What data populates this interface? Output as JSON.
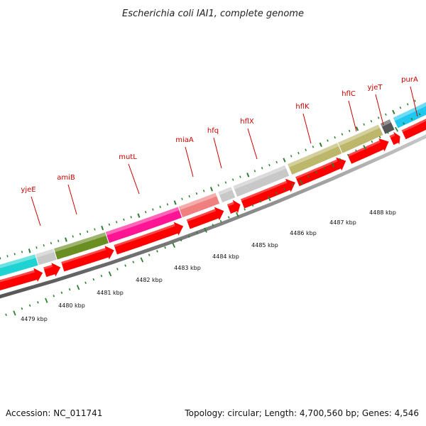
{
  "title": "Escherichia coli IAI1, complete genome",
  "footer": {
    "accession": "Accession: NC_011741",
    "summary": "Topology: circular; Length: 4,700,560 bp; Genes: 4,546"
  },
  "colors": {
    "gene_label": "#cc0000",
    "cds_arrow": "#ff0000",
    "backbone": "#888888",
    "tick": "#2e7d32"
  },
  "features": [
    {
      "name": "",
      "color": "#1fd3d3"
    },
    {
      "name": "yjeE",
      "color": "#c8c8c8"
    },
    {
      "name": "amiB",
      "color": "#6b8e23"
    },
    {
      "name": "mutL",
      "color": "#ff1493"
    },
    {
      "name": "miaA",
      "color": "#f08080"
    },
    {
      "name": "hfq",
      "color": "#c8c8c8"
    },
    {
      "name": "hflX",
      "color": "#c8c8c8"
    },
    {
      "name": "hflK",
      "color": "#bdb76b"
    },
    {
      "name": "hflC",
      "color": "#bdb76b"
    },
    {
      "name": "yjeT",
      "color": "#555555"
    },
    {
      "name": "purA",
      "color": "#1ec8f0"
    }
  ],
  "scale_labels": [
    "4479 kbp",
    "4480 kbp",
    "4481 kbp",
    "4482 kbp",
    "4483 kbp",
    "4484 kbp",
    "4485 kbp",
    "4486 kbp",
    "4487 kbp",
    "4488 kbp"
  ]
}
